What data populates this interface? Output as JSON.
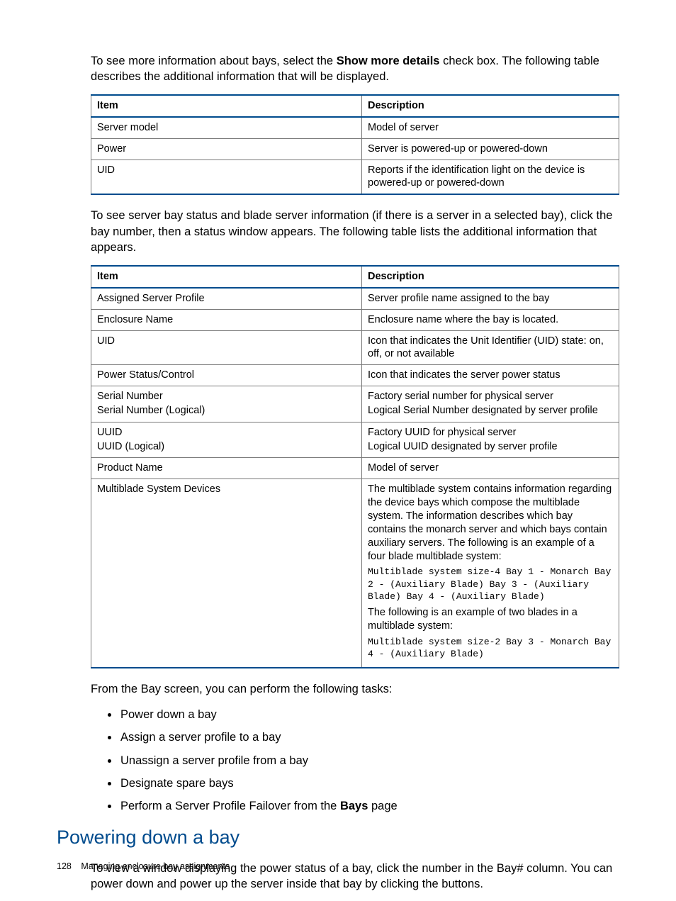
{
  "paragraphs": {
    "p1_pre": "To see more information about bays, select the ",
    "p1_bold": "Show more details",
    "p1_post": " check box. The following table describes the additional information that will be displayed.",
    "p2": "To see server bay status and blade server information (if there is a server in a selected bay), click the bay number, then a status window appears. The following table lists the additional information that appears.",
    "p3": "From the Bay screen, you can perform the following tasks:",
    "p4": "To view a window displaying the power status of a bay, click the number in the Bay# column. You can power down and power up the server inside that bay by clicking the buttons."
  },
  "section_heading": "Powering down a bay",
  "table1": {
    "header_item": "Item",
    "header_desc": "Description",
    "rows": [
      {
        "item": "Server model",
        "desc": "Model of server"
      },
      {
        "item": "Power",
        "desc": "Server is powered-up or powered-down"
      },
      {
        "item": "UID",
        "desc": "Reports if the identification light on the device is powered-up or powered-down"
      }
    ]
  },
  "table2": {
    "header_item": "Item",
    "header_desc": "Description",
    "row0": {
      "item": "Assigned Server Profile",
      "desc": "Server profile name assigned to the bay"
    },
    "row1": {
      "item": "Enclosure Name",
      "desc": "Enclosure name where the bay is located."
    },
    "row2": {
      "item": "UID",
      "desc": "Icon that indicates the Unit Identifier (UID) state: on, off, or not available"
    },
    "row3": {
      "item": "Power Status/Control",
      "desc": "Icon that indicates the server power status"
    },
    "row4": {
      "item_l1": "Serial Number",
      "item_l2": "Serial Number (Logical)",
      "desc_l1": "Factory serial number for physical server",
      "desc_l2": "Logical Serial Number designated by server profile"
    },
    "row5": {
      "item_l1": "UUID",
      "item_l2": "UUID (Logical)",
      "desc_l1": "Factory UUID for physical server",
      "desc_l2": "Logical UUID designated by server profile"
    },
    "row6": {
      "item": "Product Name",
      "desc": "Model of server"
    },
    "row7": {
      "item": "Multiblade System Devices",
      "desc_p1": "The multiblade system contains information regarding the device bays which compose the multiblade system. The information describes which bay contains the monarch server and which bays contain auxiliary servers. The following is an example of a four blade multiblade system:",
      "desc_mono1": "Multiblade system size-4 Bay 1 - Monarch       Bay 2 - (Auxiliary Blade)       Bay 3 - (Auxiliary Blade)       Bay 4 - (Auxiliary Blade)",
      "desc_p2": "The following is an example of two blades in a multiblade system:",
      "desc_mono2": "Multiblade system size-2        Bay 3 - Monarch       Bay 4 - (Auxiliary Blade)"
    }
  },
  "tasks": {
    "t0": "Power down a bay",
    "t1": "Assign a server profile to a bay",
    "t2": "Unassign a server profile from a bay",
    "t3": "Designate spare bays",
    "t4_pre": "Perform a Server Profile Failover from the ",
    "t4_bold": "Bays",
    "t4_post": " page"
  },
  "footer": {
    "page_num": "128",
    "label": "Managing enclosure bay assignments"
  },
  "colors": {
    "heading": "#004b8d",
    "table_accent": "#004b8d",
    "table_border": "#7a7a7a",
    "text": "#000000",
    "background": "#ffffff"
  }
}
